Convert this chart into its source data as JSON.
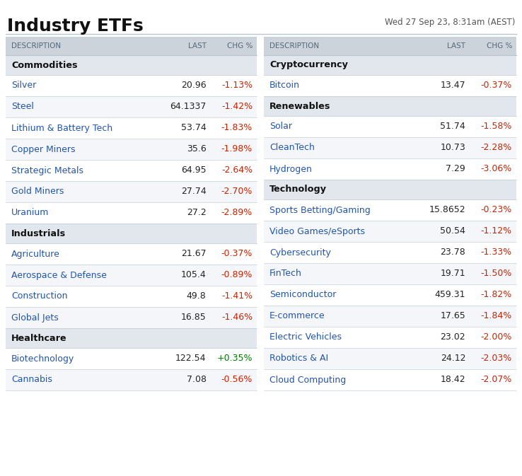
{
  "title": "Industry ETFs",
  "datetime": "Wed 27 Sep 23, 8:31am (AEST)",
  "title_fontsize": 18,
  "datetime_fontsize": 8.5,
  "header_bg": "#cdd3db",
  "section_bg": "#e2e7ed",
  "row_bg_odd": "#ffffff",
  "row_bg_even": "#f4f6f9",
  "text_color": "#222222",
  "section_color": "#111111",
  "chg_neg_color": "#cc2200",
  "chg_pos_color": "#007700",
  "header_text_color": "#556677",
  "desc_link_color": "#2255aa",
  "fig_bg": "#ffffff",
  "border_color": "#b8c4d0",
  "left_table": {
    "headers": [
      "DESCRIPTION",
      "LAST",
      "CHG %"
    ],
    "sections": [
      {
        "name": "Commodities",
        "rows": [
          [
            "Silver",
            "20.96",
            "-1.13%"
          ],
          [
            "Steel",
            "64.1337",
            "-1.42%"
          ],
          [
            "Lithium & Battery Tech",
            "53.74",
            "-1.83%"
          ],
          [
            "Copper Miners",
            "35.6",
            "-1.98%"
          ],
          [
            "Strategic Metals",
            "64.95",
            "-2.64%"
          ],
          [
            "Gold Miners",
            "27.74",
            "-2.70%"
          ],
          [
            "Uranium",
            "27.2",
            "-2.89%"
          ]
        ]
      },
      {
        "name": "Industrials",
        "rows": [
          [
            "Agriculture",
            "21.67",
            "-0.37%"
          ],
          [
            "Aerospace & Defense",
            "105.4",
            "-0.89%"
          ],
          [
            "Construction",
            "49.8",
            "-1.41%"
          ],
          [
            "Global Jets",
            "16.85",
            "-1.46%"
          ]
        ]
      },
      {
        "name": "Healthcare",
        "rows": [
          [
            "Biotechnology",
            "122.54",
            "+0.35%"
          ],
          [
            "Cannabis",
            "7.08",
            "-0.56%"
          ]
        ]
      }
    ]
  },
  "right_table": {
    "headers": [
      "DESCRIPTION",
      "LAST",
      "CHG %"
    ],
    "sections": [
      {
        "name": "Cryptocurrency",
        "rows": [
          [
            "Bitcoin",
            "13.47",
            "-0.37%"
          ]
        ]
      },
      {
        "name": "Renewables",
        "rows": [
          [
            "Solar",
            "51.74",
            "-1.58%"
          ],
          [
            "CleanTech",
            "10.73",
            "-2.28%"
          ],
          [
            "Hydrogen",
            "7.29",
            "-3.06%"
          ]
        ]
      },
      {
        "name": "Technology",
        "rows": [
          [
            "Sports Betting/Gaming",
            "15.8652",
            "-0.23%"
          ],
          [
            "Video Games/eSports",
            "50.54",
            "-1.12%"
          ],
          [
            "Cybersecurity",
            "23.78",
            "-1.33%"
          ],
          [
            "FinTech",
            "19.71",
            "-1.50%"
          ],
          [
            "Semiconductor",
            "459.31",
            "-1.82%"
          ],
          [
            "E-commerce",
            "17.65",
            "-1.84%"
          ],
          [
            "Electric Vehicles",
            "23.02",
            "-2.00%"
          ],
          [
            "Robotics & AI",
            "24.12",
            "-2.03%"
          ],
          [
            "Cloud Computing",
            "18.42",
            "-2.07%"
          ]
        ]
      }
    ]
  }
}
